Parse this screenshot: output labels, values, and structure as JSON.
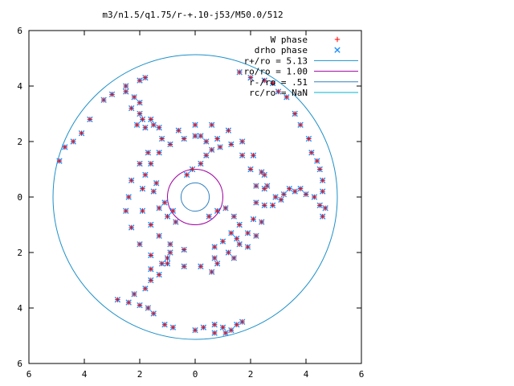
{
  "chart_data": {
    "type": "scatter",
    "title": "m3/n1.5/q1.75/r-+.10-j53/M50.0/512",
    "xlabel": "",
    "ylabel": "",
    "xlim": [
      -6,
      6
    ],
    "ylim": [
      -6,
      6
    ],
    "x_ticks": [
      -6,
      -4,
      -2,
      0,
      2,
      4,
      6
    ],
    "y_ticks": [
      -6,
      -4,
      -2,
      0,
      2,
      4,
      6
    ],
    "x_tick_labels": [
      "6",
      "4",
      "2",
      "0",
      "2",
      "4",
      "6"
    ],
    "y_tick_labels": [
      "6",
      "4",
      "2",
      "0",
      "2",
      "4",
      "6"
    ],
    "grid": false,
    "legend_position": "top-right",
    "legend": [
      {
        "label": "W phase",
        "kind": "point",
        "marker": "plus",
        "color": "#ff0000"
      },
      {
        "label": "drho phase",
        "kind": "point",
        "marker": "cross",
        "color": "#1e90ff"
      },
      {
        "label": "r+/ro = 5.13",
        "kind": "circle",
        "radius": 5.13,
        "color": "#1e90c8"
      },
      {
        "label": "ro/ro = 1.00",
        "kind": "circle",
        "radius": 1.0,
        "color": "#a000a0"
      },
      {
        "label": "r-/ro = .51",
        "kind": "circle",
        "radius": 0.51,
        "color": "#3080c0"
      },
      {
        "label": "rc/ro = NaN",
        "kind": "circle",
        "radius": null,
        "color": "#00b4d0"
      }
    ],
    "arms": [
      {
        "name": "outer arm upper-left",
        "points": [
          [
            -4.9,
            1.3
          ],
          [
            -4.7,
            1.8
          ],
          [
            -4.4,
            2.0
          ],
          [
            -4.1,
            2.3
          ],
          [
            -3.8,
            2.8
          ],
          [
            -3.3,
            3.5
          ],
          [
            -3.0,
            3.7
          ],
          [
            -2.5,
            4.0
          ],
          [
            -2.0,
            4.2
          ],
          [
            -1.8,
            4.3
          ],
          [
            -2.5,
            3.8
          ],
          [
            -2.2,
            3.6
          ],
          [
            -2.0,
            3.4
          ],
          [
            -2.3,
            3.2
          ],
          [
            -2.0,
            3.0
          ],
          [
            -1.9,
            2.8
          ],
          [
            -1.6,
            2.8
          ],
          [
            -2.1,
            2.6
          ],
          [
            -1.8,
            2.5
          ],
          [
            -1.5,
            2.6
          ],
          [
            -1.3,
            2.5
          ]
        ]
      },
      {
        "name": "outer arm upper-right",
        "points": [
          [
            1.6,
            4.5
          ],
          [
            2.0,
            4.3
          ],
          [
            2.5,
            4.2
          ],
          [
            2.8,
            4.1
          ],
          [
            3.0,
            3.8
          ],
          [
            3.3,
            3.6
          ],
          [
            3.6,
            3.0
          ],
          [
            3.8,
            2.6
          ],
          [
            4.1,
            2.1
          ],
          [
            4.2,
            1.6
          ],
          [
            4.4,
            1.3
          ],
          [
            4.5,
            1.0
          ],
          [
            4.6,
            0.6
          ],
          [
            4.6,
            0.2
          ],
          [
            4.7,
            -0.4
          ],
          [
            4.6,
            -0.7
          ],
          [
            4.5,
            -0.3
          ],
          [
            4.3,
            0.0
          ],
          [
            4.0,
            0.1
          ],
          [
            3.6,
            0.2
          ],
          [
            3.2,
            0.1
          ],
          [
            2.9,
            0.0
          ],
          [
            2.8,
            -0.3
          ],
          [
            3.1,
            -0.1
          ],
          [
            3.4,
            0.3
          ],
          [
            3.8,
            0.3
          ],
          [
            2.6,
            0.4
          ],
          [
            2.5,
            0.8
          ]
        ]
      },
      {
        "name": "outer arm lower-left",
        "points": [
          [
            -2.8,
            -3.7
          ],
          [
            -2.4,
            -3.8
          ],
          [
            -2.0,
            -3.9
          ],
          [
            -1.7,
            -4.0
          ],
          [
            -1.5,
            -4.2
          ],
          [
            -1.1,
            -4.6
          ],
          [
            -0.8,
            -4.7
          ],
          [
            -2.2,
            -3.5
          ],
          [
            -1.8,
            -3.3
          ],
          [
            -1.6,
            -3.0
          ],
          [
            -1.3,
            -2.8
          ],
          [
            -1.6,
            -2.6
          ],
          [
            -1.2,
            -2.4
          ],
          [
            -1.0,
            -2.2
          ],
          [
            -0.9,
            -2.0
          ]
        ]
      },
      {
        "name": "outer arm lower-right",
        "points": [
          [
            0.0,
            -4.8
          ],
          [
            0.3,
            -4.7
          ],
          [
            0.7,
            -4.6
          ],
          [
            1.0,
            -4.7
          ],
          [
            0.7,
            -4.9
          ],
          [
            1.1,
            -4.9
          ],
          [
            1.3,
            -4.8
          ],
          [
            1.5,
            -4.6
          ],
          [
            1.7,
            -4.5
          ],
          [
            0.6,
            -2.7
          ]
        ]
      },
      {
        "name": "inner ring",
        "points": [
          [
            -2.4,
            0.0
          ],
          [
            -2.3,
            0.6
          ],
          [
            -2.0,
            1.2
          ],
          [
            -1.7,
            1.6
          ],
          [
            -1.2,
            2.1
          ],
          [
            -0.6,
            2.4
          ],
          [
            0.0,
            2.6
          ],
          [
            0.6,
            2.6
          ],
          [
            1.2,
            2.4
          ],
          [
            1.7,
            2.0
          ],
          [
            2.1,
            1.5
          ],
          [
            2.4,
            0.9
          ],
          [
            2.5,
            0.3
          ],
          [
            2.5,
            -0.3
          ],
          [
            2.4,
            -0.9
          ],
          [
            2.2,
            -1.4
          ],
          [
            1.9,
            -1.8
          ],
          [
            1.4,
            -2.2
          ],
          [
            0.8,
            -2.4
          ],
          [
            0.2,
            -2.5
          ],
          [
            -0.4,
            -2.5
          ],
          [
            -1.0,
            -2.4
          ],
          [
            -1.6,
            -2.1
          ],
          [
            -2.0,
            -1.7
          ],
          [
            -2.3,
            -1.1
          ],
          [
            -2.5,
            -0.5
          ]
        ]
      },
      {
        "name": "middle ring",
        "points": [
          [
            -1.9,
            0.3
          ],
          [
            -1.8,
            0.8
          ],
          [
            -1.6,
            1.2
          ],
          [
            -1.3,
            1.6
          ],
          [
            -0.9,
            1.9
          ],
          [
            -0.4,
            2.1
          ],
          [
            0.2,
            2.2
          ],
          [
            0.8,
            2.1
          ],
          [
            1.3,
            1.9
          ],
          [
            1.7,
            1.5
          ],
          [
            2.0,
            1.0
          ],
          [
            2.2,
            0.4
          ],
          [
            2.2,
            -0.2
          ],
          [
            2.1,
            -0.8
          ],
          [
            1.9,
            -1.3
          ],
          [
            1.6,
            -1.7
          ],
          [
            1.2,
            -2.0
          ],
          [
            0.7,
            -2.2
          ],
          [
            -1.9,
            -0.5
          ],
          [
            -1.6,
            -1.0
          ],
          [
            -1.3,
            -1.4
          ],
          [
            -0.9,
            -1.7
          ],
          [
            -0.4,
            -1.9
          ]
        ]
      },
      {
        "name": "inner arms",
        "points": [
          [
            -1.5,
            0.2
          ],
          [
            -1.3,
            -0.4
          ],
          [
            -1.0,
            -0.7
          ],
          [
            -0.7,
            -0.9
          ],
          [
            -1.4,
            0.5
          ],
          [
            -1.1,
            -0.2
          ],
          [
            -0.8,
            -0.5
          ],
          [
            -0.3,
            0.8
          ],
          [
            -0.1,
            1.0
          ],
          [
            0.2,
            1.2
          ],
          [
            0.4,
            1.5
          ],
          [
            0.6,
            1.7
          ],
          [
            0.9,
            1.8
          ],
          [
            0.0,
            2.2
          ],
          [
            0.4,
            2.0
          ],
          [
            0.5,
            -0.7
          ],
          [
            0.8,
            -0.5
          ],
          [
            1.1,
            -0.4
          ],
          [
            1.4,
            -0.7
          ],
          [
            1.6,
            -1.0
          ],
          [
            1.3,
            -1.3
          ],
          [
            1.5,
            -1.5
          ],
          [
            1.0,
            -1.6
          ],
          [
            0.7,
            -1.8
          ]
        ]
      }
    ]
  }
}
